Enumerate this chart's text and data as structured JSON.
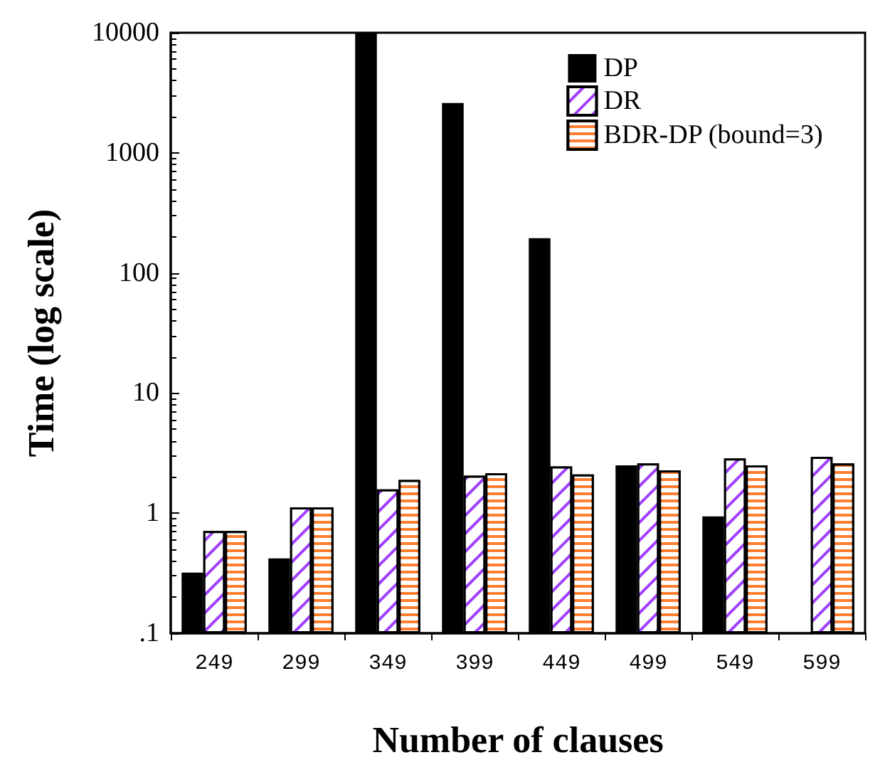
{
  "chart_data": {
    "type": "bar",
    "xlabel": "Number of clauses",
    "ylabel": "Time (log scale)",
    "categories": [
      "249",
      "299",
      "349",
      "399",
      "449",
      "499",
      "549",
      "599"
    ],
    "series": [
      {
        "name": "DP",
        "color": "#000000",
        "values": [
          0.32,
          0.42,
          10000,
          2600,
          195,
          2.5,
          0.94,
          null
        ]
      },
      {
        "name": "DR",
        "color": "#a040ff",
        "values": [
          0.71,
          1.12,
          1.58,
          2.05,
          2.45,
          2.6,
          2.86,
          2.95
        ]
      },
      {
        "name": "BDR-DP (bound=3)",
        "color": "#ff7f30",
        "values": [
          0.71,
          1.12,
          1.89,
          2.15,
          2.1,
          2.27,
          2.5,
          2.6
        ]
      }
    ],
    "log": "y",
    "ylim": [
      0.1,
      10000
    ],
    "yticks": [
      {
        "value": 0.1,
        "label": ".1"
      },
      1,
      10,
      100,
      1000,
      10000
    ],
    "grid": false,
    "legend": "top right"
  }
}
